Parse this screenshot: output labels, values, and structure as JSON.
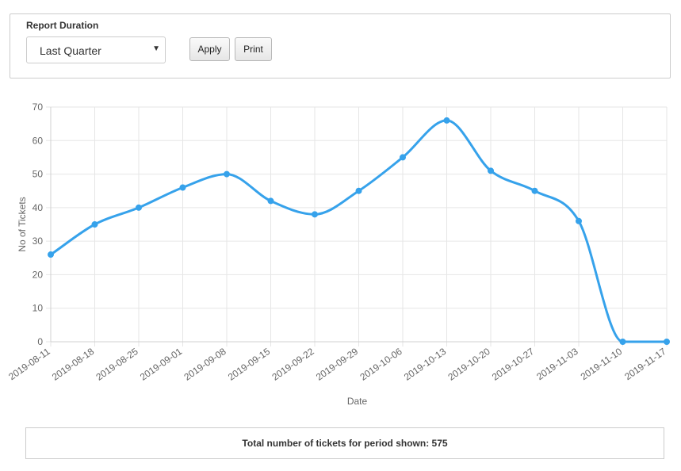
{
  "report": {
    "label": "Report Duration",
    "selected": "Last Quarter",
    "apply_label": "Apply",
    "print_label": "Print"
  },
  "colors": {
    "line": "#36a2eb",
    "grid": "#e6e6e6",
    "axis_text": "#666666"
  },
  "chart_data": {
    "type": "line",
    "categories": [
      "2019-08-11",
      "2019-08-18",
      "2019-08-25",
      "2019-09-01",
      "2019-09-08",
      "2019-09-15",
      "2019-09-22",
      "2019-09-29",
      "2019-10-06",
      "2019-10-13",
      "2019-10-20",
      "2019-10-27",
      "2019-11-03",
      "2019-11-10",
      "2019-11-17"
    ],
    "series": [
      {
        "values": [
          26,
          35,
          40,
          46,
          50,
          42,
          38,
          45,
          55,
          66,
          51,
          45,
          36,
          0,
          0
        ]
      }
    ],
    "xlabel": "Date",
    "ylabel": "No of Tickets",
    "ylim": [
      0,
      70
    ],
    "yticks": [
      0,
      10,
      20,
      30,
      40,
      50,
      60,
      70
    ],
    "grid": true,
    "legend": "none"
  },
  "summary": {
    "total_text": "Total number of tickets for period shown: 575"
  }
}
